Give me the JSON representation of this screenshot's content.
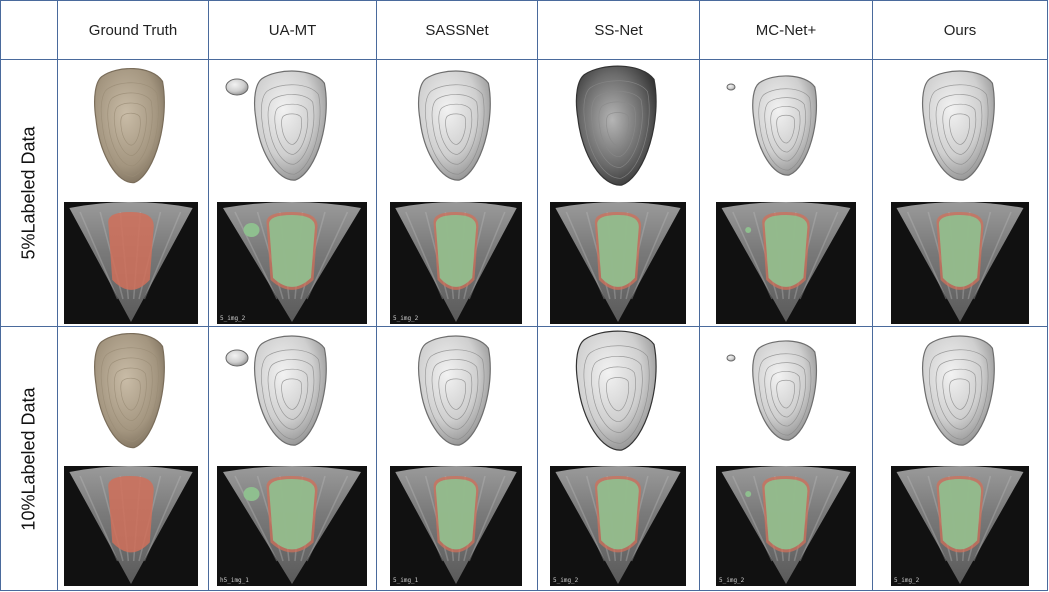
{
  "header": {
    "columns": [
      "Ground Truth",
      "UA-MT",
      "SASSNet",
      "SS-Net",
      "MC-Net+",
      "Ours"
    ]
  },
  "rows": [
    {
      "label": "5%Labeled Data",
      "image_tags": [
        "",
        "5_img_2",
        "5_img_2",
        "",
        "",
        ""
      ]
    },
    {
      "label": "10%Labeled Data",
      "image_tags": [
        "",
        "h5_img_1",
        "5_img_1",
        "5_img_2",
        "5_img_2",
        "5_img_2"
      ]
    }
  ],
  "colors": {
    "grid_line": "#4a6a9c",
    "ground_truth_mask": "#d0705a",
    "prediction_mask": "#8fbf8f",
    "gt_surface": "#a89a86",
    "pred_surface": "#cfcfcf"
  }
}
